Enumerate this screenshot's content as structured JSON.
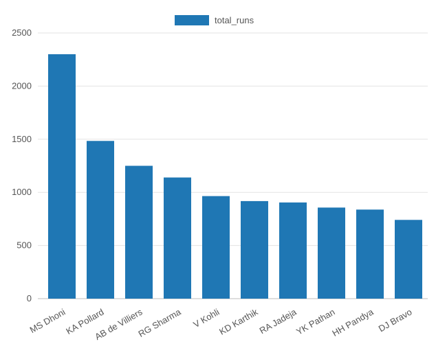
{
  "chart_data": {
    "type": "bar",
    "categories": [
      "MS Dhoni",
      "KA Pollard",
      "AB de Villiers",
      "RG Sharma",
      "V Kohli",
      "KD Karthik",
      "RA Jadeja",
      "YK Pathan",
      "HH Pandya",
      "DJ Bravo"
    ],
    "series": [
      {
        "name": "total_runs",
        "values": [
          2300,
          1484,
          1250,
          1140,
          965,
          918,
          905,
          857,
          838,
          741
        ],
        "color": "#1f77b4"
      }
    ],
    "yticks": [
      0,
      500,
      1000,
      1500,
      2000,
      2500
    ],
    "ylim": [
      0,
      2500
    ],
    "grid": true,
    "legend_position": "top-center",
    "title": "",
    "xlabel": "",
    "ylabel": ""
  }
}
